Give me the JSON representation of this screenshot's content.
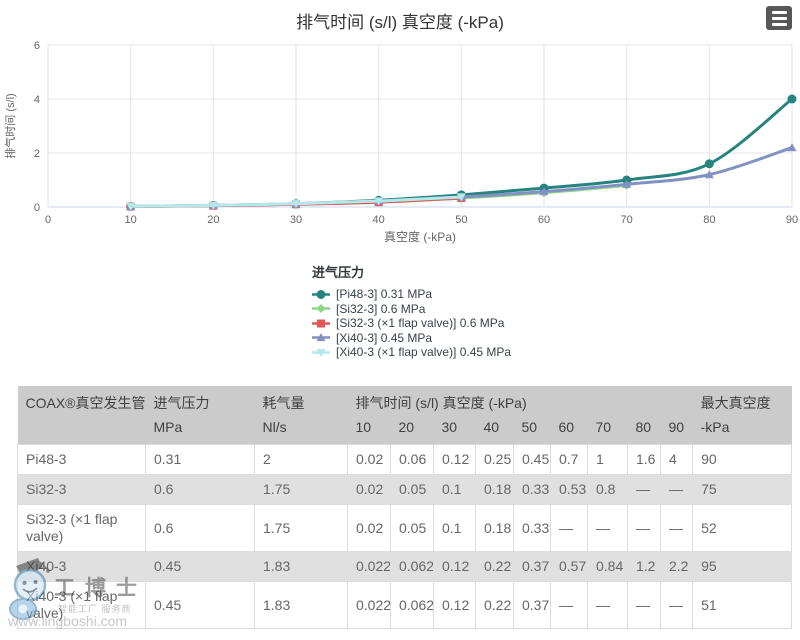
{
  "chart_data": {
    "type": "line",
    "title": "排气时间 (s/l) 真空度 (-kPa)",
    "xlabel": "真空度 (-kPa)",
    "ylabel": "排气时间 (s/l)",
    "xlim": [
      0,
      90
    ],
    "ylim": [
      0,
      6
    ],
    "xticks": [
      0,
      10,
      20,
      30,
      40,
      50,
      60,
      70,
      80,
      90
    ],
    "yticks": [
      0,
      2,
      4,
      6
    ],
    "grid": true,
    "legend_title": "进气压力",
    "legend_position": "below-left",
    "x": [
      10,
      20,
      30,
      40,
      50,
      60,
      70,
      80,
      90
    ],
    "series": [
      {
        "name": "[Pi48-3] 0.31 MPa",
        "color": "#26837e",
        "marker": "circle",
        "values": [
          0.02,
          0.06,
          0.12,
          0.25,
          0.45,
          0.7,
          1,
          1.6,
          4
        ]
      },
      {
        "name": "[Si32-3] 0.6 MPa",
        "color": "#8ed687",
        "marker": "diamond",
        "values": [
          0.02,
          0.05,
          0.1,
          0.18,
          0.33,
          0.53,
          0.8
        ]
      },
      {
        "name": "[Si32-3 (×1 flap valve)] 0.6 MPa",
        "color": "#e25757",
        "marker": "square",
        "values": [
          0.02,
          0.05,
          0.1,
          0.18,
          0.33
        ]
      },
      {
        "name": "[Xi40-3] 0.45 MPa",
        "color": "#8192c2",
        "marker": "triangle",
        "values": [
          0.022,
          0.062,
          0.12,
          0.22,
          0.37,
          0.57,
          0.84,
          1.2,
          2.2
        ]
      },
      {
        "name": "[Xi40-3 (×1 flap valve)] 0.45 MPa",
        "color": "#b5e8e9",
        "marker": "triangle-down",
        "values": [
          0.022,
          0.062,
          0.12,
          0.22,
          0.37
        ]
      }
    ]
  },
  "export_menu": {
    "icon": "hamburger-menu-icon"
  },
  "table": {
    "header_row1": [
      {
        "label": "COAX®真空发生管",
        "span": 1
      },
      {
        "label": "进气压力",
        "span": 1
      },
      {
        "label": "耗气量",
        "span": 1
      },
      {
        "label": "排气时间 (s/l) 真空度 (-kPa)",
        "span": 9
      },
      {
        "label": "最大真空度",
        "span": 1
      }
    ],
    "header_row2": [
      "",
      "MPa",
      "Nl/s",
      "10",
      "20",
      "30",
      "40",
      "50",
      "60",
      "70",
      "80",
      "90",
      "-kPa"
    ],
    "rows": [
      {
        "name": "Pi48-3",
        "pressure": "0.31",
        "consumption": "2",
        "times": [
          "0.02",
          "0.06",
          "0.12",
          "0.25",
          "0.45",
          "0.7",
          "1",
          "1.6",
          "4"
        ],
        "max_vacuum": "90"
      },
      {
        "name": "Si32-3",
        "pressure": "0.6",
        "consumption": "1.75",
        "times": [
          "0.02",
          "0.05",
          "0.1",
          "0.18",
          "0.33",
          "0.53",
          "0.8",
          "—",
          "—"
        ],
        "max_vacuum": "75"
      },
      {
        "name": "Si32-3 (×1 flap valve)",
        "pressure": "0.6",
        "consumption": "1.75",
        "times": [
          "0.02",
          "0.05",
          "0.1",
          "0.18",
          "0.33",
          "—",
          "—",
          "—",
          "—"
        ],
        "max_vacuum": "52"
      },
      {
        "name": "Xi40-3",
        "pressure": "0.45",
        "consumption": "1.83",
        "times": [
          "0.022",
          "0.062",
          "0.12",
          "0.22",
          "0.37",
          "0.57",
          "0.84",
          "1.2",
          "2.2"
        ],
        "max_vacuum": "95"
      },
      {
        "name": "Xi40-3 (×1 flap valve)",
        "pressure": "0.45",
        "consumption": "1.83",
        "times": [
          "0.022",
          "0.062",
          "0.12",
          "0.22",
          "0.37",
          "—",
          "—",
          "—",
          "—"
        ],
        "max_vacuum": "51"
      }
    ]
  },
  "watermark": {
    "logo": "robot-mascot-icon",
    "brand": "工博士",
    "tagline": "智能工厂 服务商",
    "url": "www.lingboshi.com"
  },
  "colors": {
    "title_text": "#333333",
    "tick_text": "#666666",
    "grid_line": "#e6e6e6",
    "axis_line": "#ccd6eb",
    "legend_text": "#37424d",
    "table_header_bg": "#cbcbcb",
    "table_alt_row_bg": "#e0e0e0",
    "table_border": "#dcdcdc",
    "table_text": "#666666",
    "export_button_bg": "#585858"
  }
}
